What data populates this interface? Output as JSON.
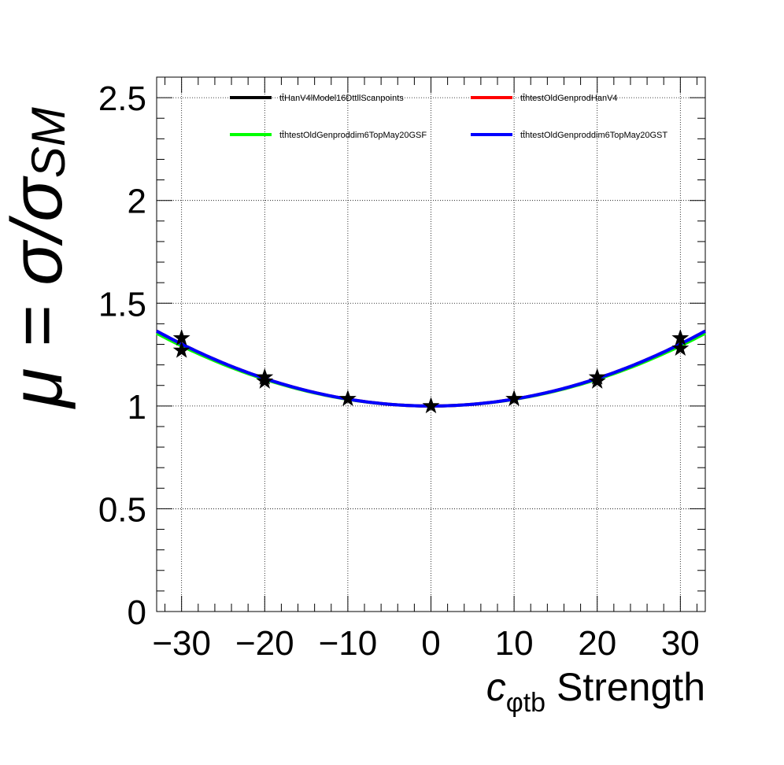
{
  "chart_data": {
    "type": "line",
    "title": "",
    "xlabel": {
      "symbol": "c",
      "subscript": "φtb",
      "suffix": " Strength"
    },
    "ylabel": {
      "prefix": "μ = σ/σ",
      "subscript": "SM"
    },
    "xlim": [
      -33,
      33
    ],
    "ylim": [
      0,
      2.6
    ],
    "x_ticks": [
      -30,
      -20,
      -10,
      0,
      10,
      20,
      30
    ],
    "x_tick_labels": [
      "−30",
      "−20",
      "−10",
      "0",
      "10",
      "20",
      "30"
    ],
    "y_ticks": [
      0,
      0.5,
      1,
      1.5,
      2,
      2.5
    ],
    "y_tick_labels": [
      "0",
      "0.5",
      "1",
      "1.5",
      "2",
      "2.5"
    ],
    "grid": true,
    "legend_position": "top",
    "series": [
      {
        "name": "tt̄HanV4lModel16DttllScanpoints",
        "color": "#000000",
        "style": "markers",
        "x": [
          -30,
          -30,
          -20,
          -20,
          -10,
          0,
          10,
          20,
          20,
          30,
          30
        ],
        "y": [
          1.33,
          1.27,
          1.14,
          1.12,
          1.035,
          1.0,
          1.035,
          1.14,
          1.12,
          1.33,
          1.28
        ]
      },
      {
        "name": "tt̄htestOldGenprodHanV4",
        "color": "#ff0000",
        "style": "line",
        "curve": {
          "a": 1.0,
          "b": 0.0,
          "c": 0.000335
        }
      },
      {
        "name": "tt̄htestOldGenproddim6TopMay20GSF",
        "color": "#00ff00",
        "style": "line",
        "curve": {
          "a": 1.0,
          "b": 0.0,
          "c": 0.000325
        }
      },
      {
        "name": "tt̄htestOldGenproddim6TopMay20GST",
        "color": "#0000ff",
        "style": "line",
        "curve": {
          "a": 1.0,
          "b": 0.0,
          "c": 0.000335
        }
      }
    ]
  }
}
